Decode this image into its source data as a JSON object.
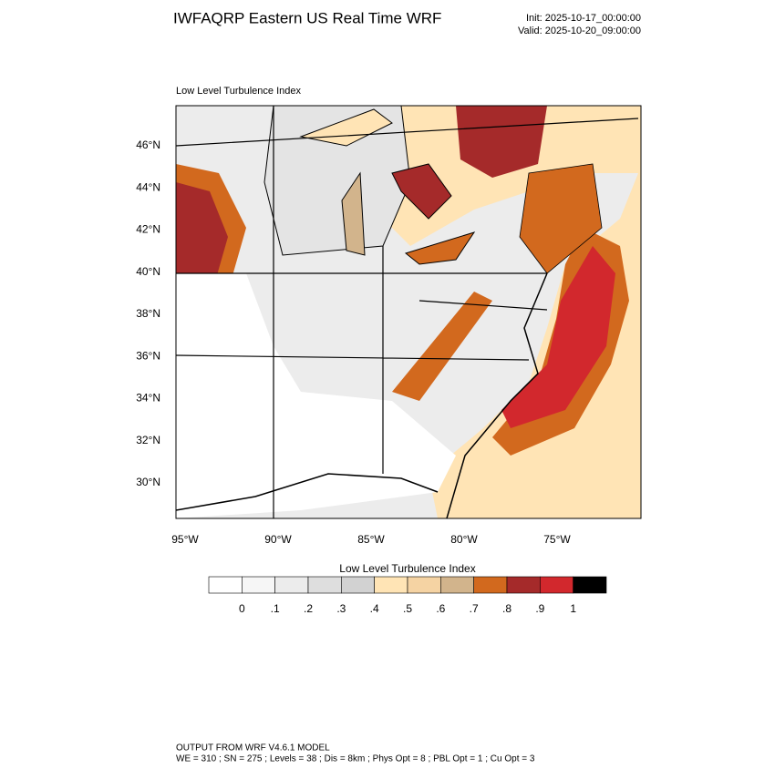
{
  "header": {
    "title": "IWFAQRP Eastern US Real Time WRF",
    "init": "Init: 2025-10-17_00:00:00",
    "valid": "Valid: 2025-10-20_09:00:00"
  },
  "map": {
    "label": "Low Level Turbulence Index",
    "lat_labels": [
      "46°N",
      "44°N",
      "42°N",
      "40°N",
      "38°N",
      "36°N",
      "34°N",
      "32°N",
      "30°N"
    ],
    "lon_labels": [
      "95°W",
      "90°W",
      "85°W",
      "80°W",
      "75°W"
    ]
  },
  "colorbar": {
    "title": "Low Level Turbulence Index",
    "colors": [
      "#ffffff",
      "#f6f6f6",
      "#ececec",
      "#dedede",
      "#d2d2d2",
      "#ffe4b5",
      "#f5d3a3",
      "#d2b48c",
      "#d2691e",
      "#a52a2a",
      "#d2282d",
      "#000000"
    ],
    "ticks": [
      0,
      {
        "value": 0.1,
        "label": ".1"
      },
      {
        "value": 0.2,
        "label": ".2"
      },
      {
        "value": 0.3,
        "label": ".3"
      },
      {
        "value": 0.4,
        "label": ".4"
      },
      {
        "value": 0.5,
        "label": ".5"
      },
      {
        "value": 0.6,
        "label": ".6"
      },
      {
        "value": 0.7,
        "label": ".7"
      },
      {
        "value": 0.8,
        "label": ".8"
      },
      {
        "value": 0.9,
        "label": ".9"
      },
      1
    ]
  },
  "footer": {
    "line1": "OUTPUT FROM WRF V4.6.1 MODEL",
    "line2": "WE = 310 ; SN = 275 ; Levels = 38 ; Dis = 8km ; Phys Opt = 8 ; PBL Opt = 1 ; Cu Opt = 3"
  }
}
